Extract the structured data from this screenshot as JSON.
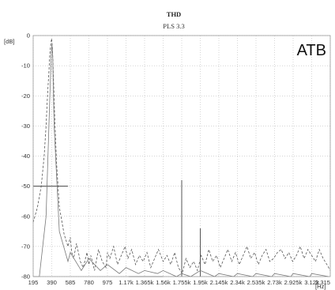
{
  "chart_data": {
    "type": "line",
    "title": "THD",
    "subtitle": "PLS 3.3",
    "tag": "ATB",
    "ylabel": "[dB]",
    "xlabel": "[Hz]",
    "xlim": [
      195,
      3315
    ],
    "ylim": [
      -80,
      0
    ],
    "yticks": [
      0,
      -10,
      -20,
      -30,
      -40,
      -50,
      -60,
      -70,
      -80
    ],
    "ytick_labels": [
      "0",
      "-10",
      "-20",
      "-30",
      "-40",
      "-50",
      "-60",
      "-70",
      "-80"
    ],
    "xticks": [
      195,
      390,
      585,
      780,
      975,
      1170,
      1365,
      1560,
      1755,
      1950,
      2145,
      2340,
      2535,
      2730,
      2925,
      3120,
      3315
    ],
    "xtick_labels": [
      "195",
      "390",
      "585",
      "780",
      "975",
      "1.17k",
      "1.365k",
      "1.56k",
      "1.755k",
      "1.95k",
      "2.145k",
      "2.34k",
      "2.535k",
      "2.73k",
      "2.925k",
      "3.12k",
      "3.315"
    ],
    "grid": true,
    "series": [
      {
        "color": "#555555",
        "dash": "3,2",
        "x": [
          195,
          240,
          280,
          310,
          330,
          345,
          360,
          370,
          380,
          388,
          395,
          402,
          410,
          420,
          440,
          470,
          520,
          560,
          585,
          600,
          620,
          650,
          690,
          720,
          760,
          780,
          800,
          840,
          880,
          920,
          960,
          975,
          1000,
          1040,
          1080,
          1120,
          1160,
          1190,
          1230,
          1270,
          1310,
          1350,
          1390,
          1430,
          1470,
          1510,
          1560,
          1600,
          1640,
          1680,
          1720,
          1760,
          1800,
          1840,
          1880,
          1920,
          1960,
          2000,
          2040,
          2080,
          2120,
          2160,
          2200,
          2240,
          2280,
          2320,
          2360,
          2400,
          2440,
          2480,
          2520,
          2560,
          2600,
          2640,
          2680,
          2720,
          2760,
          2800,
          2840,
          2880,
          2920,
          2960,
          3000,
          3040,
          3080,
          3120,
          3160,
          3200,
          3240,
          3280,
          3315
        ],
        "y": [
          -62,
          -57,
          -50,
          -40,
          -30,
          -20,
          -12,
          -6,
          -3,
          -1,
          -3,
          -8,
          -16,
          -26,
          -42,
          -57,
          -66,
          -70,
          -67,
          -72,
          -74,
          -69,
          -75,
          -77,
          -72,
          -76,
          -73,
          -78,
          -71,
          -75,
          -77,
          -72,
          -74,
          -70,
          -76,
          -73,
          -70,
          -74,
          -71,
          -76,
          -73,
          -75,
          -72,
          -77,
          -74,
          -71,
          -75,
          -73,
          -76,
          -72,
          -77,
          -79,
          -74,
          -77,
          -75,
          -78,
          -73,
          -76,
          -71,
          -75,
          -73,
          -77,
          -74,
          -71,
          -75,
          -72,
          -76,
          -73,
          -70,
          -74,
          -72,
          -76,
          -73,
          -71,
          -75,
          -74,
          -72,
          -71,
          -74,
          -72,
          -75,
          -73,
          -70,
          -74,
          -71,
          -73,
          -75,
          -71,
          -74,
          -76,
          -78
        ]
      },
      {
        "color": "#777777",
        "dash": "",
        "x": [
          195,
          260,
          330,
          370,
          385,
          392,
          400,
          415,
          470,
          560,
          585,
          700,
          780,
          900,
          975,
          1100,
          1170,
          1300,
          1365,
          1500,
          1560,
          1700,
          1755,
          1850,
          1950,
          2100,
          2145,
          2300,
          2340,
          2500,
          2535,
          2700,
          2730,
          2900,
          2925,
          3100,
          3120,
          3300
        ],
        "y": [
          -80,
          -80,
          -60,
          -20,
          -6,
          -3,
          -7,
          -30,
          -65,
          -75,
          -72,
          -78,
          -74,
          -78,
          -76,
          -79,
          -77,
          -79,
          -78,
          -79,
          -78,
          -80,
          -79,
          -80,
          -78,
          -80,
          -79,
          -80,
          -79,
          -80,
          -79,
          -80,
          -79,
          -80,
          -79,
          -80,
          -79,
          -80
        ]
      }
    ],
    "annotations": [
      {
        "type": "hline",
        "y": -50,
        "x1": 195,
        "x2": 560
      },
      {
        "type": "hline",
        "y": -80,
        "x1": 1200,
        "x2": 1560
      },
      {
        "type": "vline",
        "x": 1755,
        "y1": -80,
        "y2": -48
      },
      {
        "type": "vline",
        "x": 1950,
        "y1": -80,
        "y2": -64
      }
    ]
  }
}
